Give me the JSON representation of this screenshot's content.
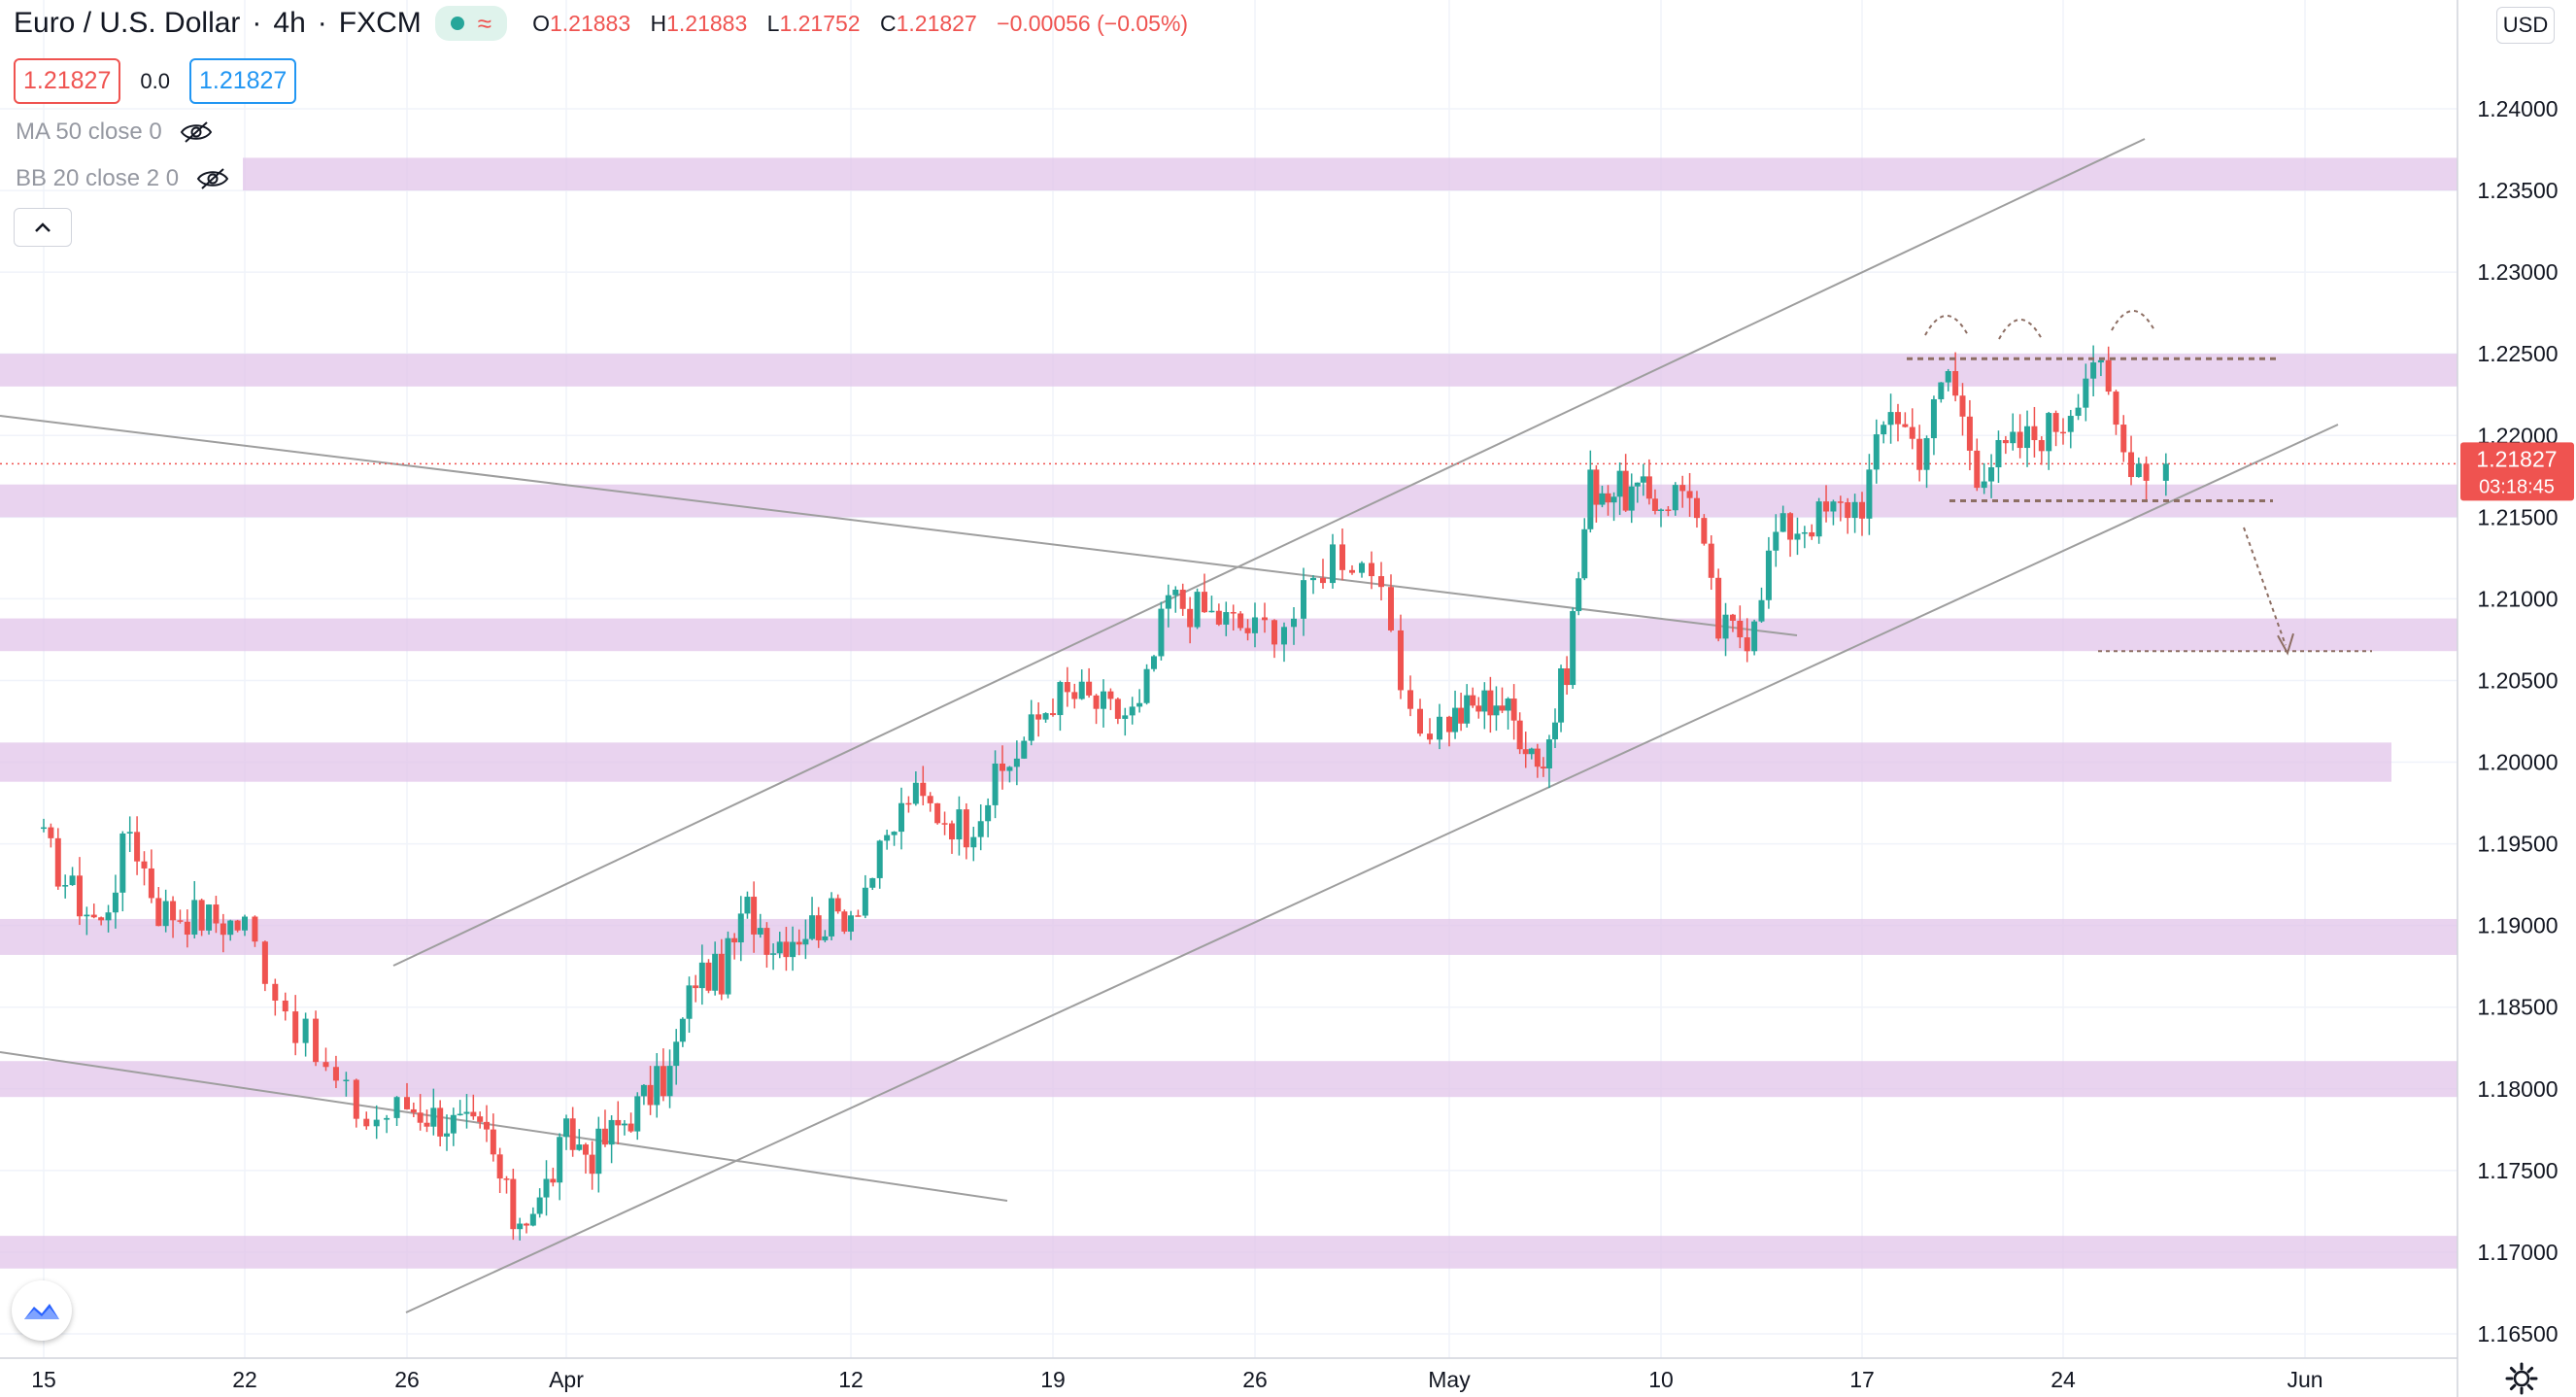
{
  "header": {
    "symbol": "Euro / U.S. Dollar",
    "interval": "4h",
    "exchange": "FXCM",
    "ohlc": {
      "o_label": "O",
      "o": "1.21883",
      "h_label": "H",
      "h": "1.21883",
      "l_label": "L",
      "l": "1.21752",
      "c_label": "C",
      "c": "1.21827",
      "change": "−0.00056 (−0.05%)"
    },
    "bid": "1.21827",
    "spread": "0.0",
    "ask": "1.21827"
  },
  "indicators": [
    {
      "label": "MA 50 close 0",
      "icon": "eye-crossed-icon"
    },
    {
      "label": "BB 20 close 2 0",
      "icon": "eye-crossed-icon"
    }
  ],
  "price_scale": {
    "currency": "USD",
    "current_price": "1.21827",
    "countdown": "03:18:45"
  },
  "colors": {
    "up": "#26a69a",
    "down": "#ef5350",
    "zone": "#e1c4e9",
    "trendline": "#9e9e9e",
    "annotation": "#8d6e63",
    "bid": "#ef5350",
    "ask": "#2196f3"
  },
  "chart_data": {
    "type": "candlestick",
    "timeframe": "4h",
    "x_ticks": [
      "15",
      "22",
      "26",
      "Apr",
      "12",
      "19",
      "26",
      "May",
      "10",
      "17",
      "24",
      "Jun"
    ],
    "y_ticks": [
      "1.24000",
      "1.23500",
      "1.23000",
      "1.22500",
      "1.22000",
      "1.21500",
      "1.21000",
      "1.20500",
      "1.20000",
      "1.19500",
      "1.19000",
      "1.18500",
      "1.18000",
      "1.17500",
      "1.17000",
      "1.16500"
    ],
    "y_range": [
      1.162,
      1.246
    ],
    "close_path": [
      [
        "Mar 15",
        1.195
      ],
      [
        "Mar 16",
        1.192
      ],
      [
        "Mar 17",
        1.19
      ],
      [
        "Mar 18",
        1.196
      ],
      [
        "Mar 19",
        1.191
      ],
      [
        "Mar 22",
        1.19
      ],
      [
        "Mar 23",
        1.185
      ],
      [
        "Mar 24",
        1.181
      ],
      [
        "Mar 25",
        1.178
      ],
      [
        "Mar 26",
        1.179
      ],
      [
        "Mar 29",
        1.177
      ],
      [
        "Mar 30",
        1.172
      ],
      [
        "Mar 31",
        1.173
      ],
      [
        "Apr 01",
        1.177
      ],
      [
        "Apr 02",
        1.176
      ],
      [
        "Apr 05",
        1.181
      ],
      [
        "Apr 06",
        1.187
      ],
      [
        "Apr 07",
        1.187
      ],
      [
        "Apr 08",
        1.191
      ],
      [
        "Apr 09",
        1.189
      ],
      [
        "Apr 12",
        1.191
      ],
      [
        "Apr 13",
        1.194
      ],
      [
        "Apr 14",
        1.198
      ],
      [
        "Apr 15",
        1.197
      ],
      [
        "Apr 16",
        1.196
      ],
      [
        "Apr 19",
        1.204
      ],
      [
        "Apr 20",
        1.204
      ],
      [
        "Apr 21",
        1.203
      ],
      [
        "Apr 22",
        1.203
      ],
      [
        "Apr 23",
        1.21
      ],
      [
        "Apr 26",
        1.208
      ],
      [
        "Apr 27",
        1.209
      ],
      [
        "Apr 28",
        1.213
      ],
      [
        "Apr 29",
        1.212
      ],
      [
        "Apr 30",
        1.202
      ],
      [
        "May 03",
        1.204
      ],
      [
        "May 04",
        1.202
      ],
      [
        "May 05",
        1.2
      ],
      [
        "May 06",
        1.206
      ],
      [
        "May 07",
        1.217
      ],
      [
        "May 10",
        1.216
      ],
      [
        "May 11",
        1.217
      ],
      [
        "May 12",
        1.208
      ],
      [
        "May 13",
        1.208
      ],
      [
        "May 14",
        1.214
      ],
      [
        "May 17",
        1.216
      ],
      [
        "May 18",
        1.222
      ],
      [
        "May 19",
        1.219
      ],
      [
        "May 20",
        1.224
      ],
      [
        "May 21",
        1.218
      ],
      [
        "May 24",
        1.221
      ],
      [
        "May 25",
        1.225
      ],
      [
        "May 26",
        1.219
      ],
      [
        "May 27",
        1.218
      ]
    ],
    "last_close": 1.21827,
    "support_resistance_zones": [
      [
        1.235,
        1.237
      ],
      [
        1.223,
        1.225
      ],
      [
        1.215,
        1.217
      ],
      [
        1.2068,
        1.2088
      ],
      [
        1.1988,
        1.2012
      ],
      [
        1.1882,
        1.1904
      ],
      [
        1.1795,
        1.1817
      ],
      [
        1.169,
        1.171
      ]
    ],
    "triple_top_level": 1.2247,
    "neckline_level": 1.216,
    "projected_target_level": 1.2068
  }
}
